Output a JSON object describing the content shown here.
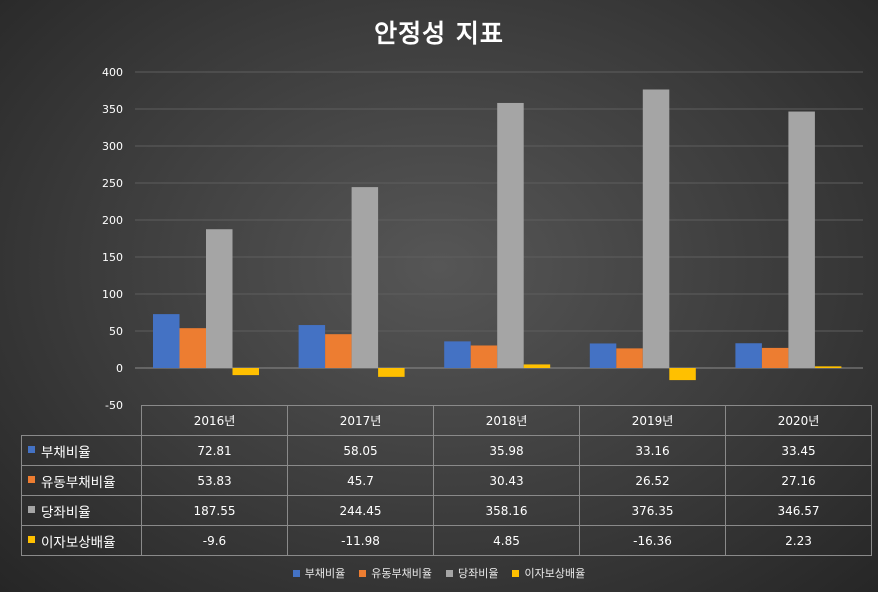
{
  "chart_data": {
    "type": "bar",
    "title": "안정성 지표",
    "categories": [
      "2016년",
      "2017년",
      "2018년",
      "2019년",
      "2020년"
    ],
    "series": [
      {
        "name": "부채비율",
        "color": "#4472c4",
        "values": [
          72.81,
          58.05,
          35.98,
          33.16,
          33.45
        ],
        "labels": [
          "72.81",
          "58.05",
          "35.98",
          "33.16",
          "33.45"
        ]
      },
      {
        "name": "유동부채비율",
        "color": "#ed7d31",
        "values": [
          53.83,
          45.7,
          30.43,
          26.52,
          27.16
        ],
        "labels": [
          "53.83",
          "45.7",
          "30.43",
          "26.52",
          "27.16"
        ]
      },
      {
        "name": "당좌비율",
        "color": "#a5a5a5",
        "values": [
          187.55,
          244.45,
          358.16,
          376.35,
          346.57
        ],
        "labels": [
          "187.55",
          "244.45",
          "358.16",
          "376.35",
          "346.57"
        ]
      },
      {
        "name": "이자보상배율",
        "color": "#ffc000",
        "values": [
          -9.6,
          -11.98,
          4.85,
          -16.36,
          2.23
        ],
        "labels": [
          "-9.6",
          "-11.98",
          "4.85",
          "-16.36",
          "2.23"
        ]
      }
    ],
    "ylim": [
      -50,
      400
    ],
    "yticks": [
      400,
      350,
      300,
      250,
      200,
      150,
      100,
      50,
      0,
      -50
    ],
    "grid": true,
    "legend": "bottom",
    "data_table": true
  }
}
